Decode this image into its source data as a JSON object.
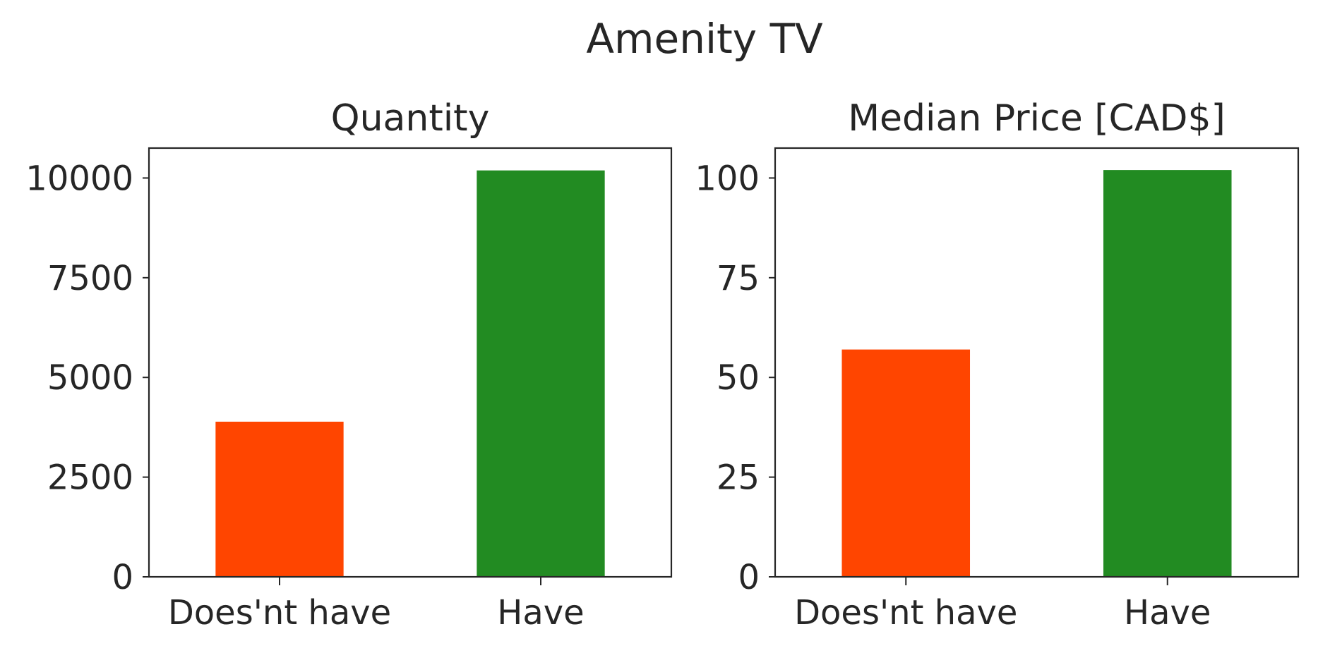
{
  "figure": {
    "title": "Amenity TV"
  },
  "chart_data": [
    {
      "type": "bar",
      "title": "Quantity",
      "xlabel": "",
      "ylabel": "",
      "categories": [
        "Does'nt have",
        "Have"
      ],
      "values": [
        3890,
        10190
      ],
      "colors": [
        "#ff4500",
        "#228b22"
      ],
      "ylim": [
        0,
        10750
      ],
      "yticks": [
        0,
        2500,
        5000,
        7500,
        10000
      ],
      "ytick_labels": [
        "0",
        "2500",
        "5000",
        "7500",
        "10000"
      ],
      "grid": false,
      "legend": "none"
    },
    {
      "type": "bar",
      "title": "Median Price [CAD$]",
      "xlabel": "",
      "ylabel": "",
      "categories": [
        "Does'nt have",
        "Have"
      ],
      "values": [
        57,
        102
      ],
      "colors": [
        "#ff4500",
        "#228b22"
      ],
      "ylim": [
        0,
        107.5
      ],
      "yticks": [
        0,
        25,
        50,
        75,
        100
      ],
      "ytick_labels": [
        "0",
        "25",
        "50",
        "75",
        "100"
      ],
      "grid": false,
      "legend": "none"
    }
  ]
}
